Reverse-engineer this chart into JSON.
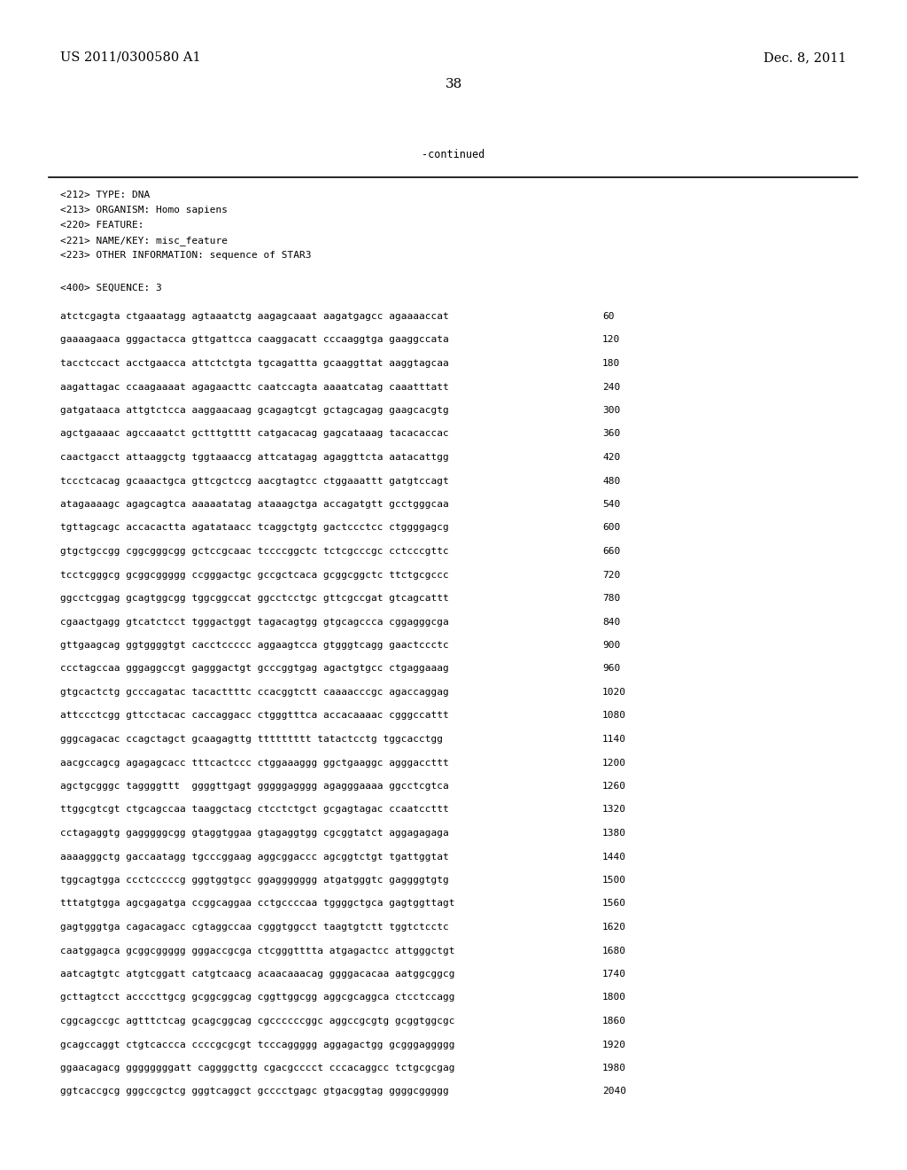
{
  "background_color": "#ffffff",
  "header_left": "US 2011/0300580 A1",
  "header_right": "Dec. 8, 2011",
  "page_number": "38",
  "continued_text": "-continued",
  "metadata_lines": [
    "<212> TYPE: DNA",
    "<213> ORGANISM: Homo sapiens",
    "<220> FEATURE:",
    "<221> NAME/KEY: misc_feature",
    "<223> OTHER INFORMATION: sequence of STAR3"
  ],
  "sequence_header": "<400> SEQUENCE: 3",
  "sequence_data": [
    [
      "atctcgagta ctgaaatagg agtaaatctg aagagcaaat aagatgagcc agaaaaccat",
      "60"
    ],
    [
      "gaaaagaaca gggactacca gttgattcca caaggacatt cccaaggtga gaaggccata",
      "120"
    ],
    [
      "tacctccact acctgaacca attctctgta tgcagattta gcaaggttat aaggtagcaa",
      "180"
    ],
    [
      "aagattagac ccaagaaaat agagaacttc caatccagta aaaatcatag caaatttatt",
      "240"
    ],
    [
      "gatgataaca attgtctcca aaggaacaag gcagagtcgt gctagcagag gaagcacgtg",
      "300"
    ],
    [
      "agctgaaaac agccaaatct gctttgtttt catgacacag gagcataaag tacacaccac",
      "360"
    ],
    [
      "caactgacct attaaggctg tggtaaaccg attcatagag agaggttcta aatacattgg",
      "420"
    ],
    [
      "tccctcacag gcaaactgca gttcgctccg aacgtagtcc ctggaaattt gatgtccagt",
      "480"
    ],
    [
      "atagaaaagc agagcagtca aaaaatatag ataaagctga accagatgtt gcctgggcaa",
      "540"
    ],
    [
      "tgttagcagc accacactta agatataacc tcaggctgtg gactccctcc ctggggagcg",
      "600"
    ],
    [
      "gtgctgccgg cggcgggcgg gctccgcaac tccccggctc tctcgcccgc cctcccgttc",
      "660"
    ],
    [
      "tcctcgggcg gcggcggggg ccgggactgc gccgctcaca gcggcggctc ttctgcgccc",
      "720"
    ],
    [
      "ggcctcggag gcagtggcgg tggcggccat ggcctcctgc gttcgccgat gtcagcattt",
      "780"
    ],
    [
      "cgaactgagg gtcatctcct tgggactggt tagacagtgg gtgcagccca cggagggcga",
      "840"
    ],
    [
      "gttgaagcag ggtggggtgt cacctccccc aggaagtcca gtgggtcagg gaactccctc",
      "900"
    ],
    [
      "ccctagccaa gggaggccgt gagggactgt gcccggtgag agactgtgcc ctgaggaaag",
      "960"
    ],
    [
      "gtgcactctg gcccagatac tacacttttc ccacggtctt caaaacccgc agaccaggag",
      "1020"
    ],
    [
      "attccctcgg gttcctacac caccaggacc ctgggtttca accacaaaac cgggccattt",
      "1080"
    ],
    [
      "gggcagacac ccagctagct gcaagagttg ttttttttt tatactcctg tggcacctgg",
      "1140"
    ],
    [
      "aacgccagcg agagagcacc tttcactccc ctggaaaggg ggctgaaggc agggaccttt",
      "1200"
    ],
    [
      "agctgcgggc taggggttt  ggggttgagt gggggagggg agagggaaaa ggcctcgtca",
      "1260"
    ],
    [
      "ttggcgtcgt ctgcagccaa taaggctacg ctcctctgct gcgagtagac ccaatccttt",
      "1320"
    ],
    [
      "cctagaggtg gagggggcgg gtaggtggaa gtagaggtgg cgcggtatct aggagagaga",
      "1380"
    ],
    [
      "aaaagggctg gaccaatagg tgcccggaag aggcggaccc agcggtctgt tgattggtat",
      "1440"
    ],
    [
      "tggcagtgga ccctcccccg gggtggtgcc ggaggggggg atgatgggtc gaggggtgtg",
      "1500"
    ],
    [
      "tttatgtgga agcgagatga ccggcaggaa cctgccccaa tggggctgca gagtggttagt",
      "1560"
    ],
    [
      "gagtgggtga cagacagacc cgtaggccaa cgggtggcct taagtgtctt tggtctcctc",
      "1620"
    ],
    [
      "caatggagca gcggcggggg gggaccgcga ctcgggtttta atgagactcc attgggctgt",
      "1680"
    ],
    [
      "aatcagtgtc atgtcggatt catgtcaacg acaacaaacag ggggacacaa aatggcggcg",
      "1740"
    ],
    [
      "gcttagtcct accccttgcg gcggcggcag cggttggcgg aggcgcaggca ctcctccagg",
      "1800"
    ],
    [
      "cggcagccgc agtttctcag gcagcggcag cgccccccggc aggccgcgtg gcggtggcgc",
      "1860"
    ],
    [
      "gcagccaggt ctgtcaccca ccccgcgcgt tcccaggggg aggagactgg gcgggaggggg",
      "1920"
    ],
    [
      "ggaacagacg ggggggggatt caggggcttg cgacgcccct cccacaggcc tctgcgcgag",
      "1980"
    ],
    [
      "ggtcaccgcg gggccgctcg gggtcaggct gcccctgagc gtgacggtag ggggcggggg",
      "2040"
    ]
  ]
}
